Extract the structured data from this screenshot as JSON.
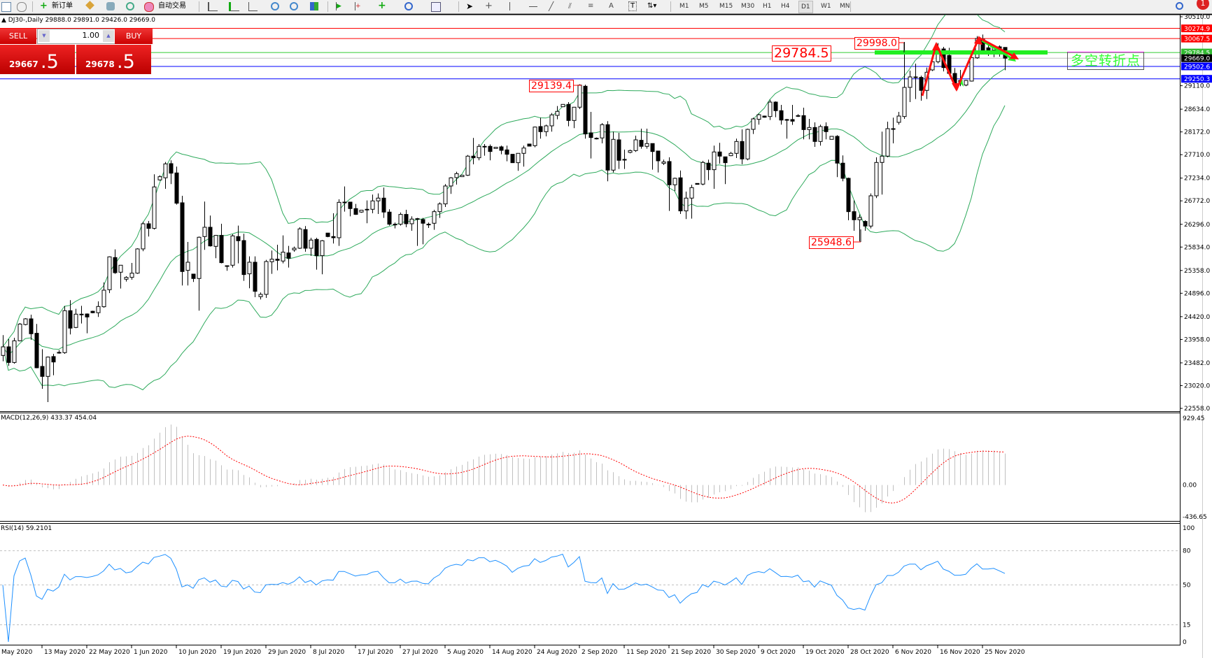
{
  "toolbar": {
    "new_order": "新订单",
    "auto_trading": "自动交易",
    "timeframes": [
      "M1",
      "M5",
      "M15",
      "M30",
      "H1",
      "H4",
      "D1",
      "W1",
      "MN"
    ],
    "active_timeframe": "D1",
    "notification_count": "1",
    "drawing_tools": [
      "A",
      "T"
    ]
  },
  "info_line": "DJ30-,Daily  29888.0 29891.0 29426.0 29669.0",
  "trade_panel": {
    "sell_label": "SELL",
    "buy_label": "BUY",
    "lot": "1.00",
    "sell_price_main": "29667",
    "sell_price_frac": ".5",
    "buy_price_main": "29678",
    "buy_price_frac": ".5",
    "color": "#cc0000"
  },
  "annotations": {
    "label_29784": "29784.5",
    "label_29998": "29998.0",
    "label_29139": "29139.4",
    "label_25948": "25948.6",
    "text_box": "多空转折点"
  },
  "indicator_titles": {
    "macd": "MACD(12,26,9) 433.37 454.04",
    "rsi": "RSI(14) 59.2101"
  },
  "chart_data": {
    "type": "candlestick",
    "symbol": "DJ30-",
    "timeframe": "Daily",
    "ylim": [
      22558.0,
      30510.0
    ],
    "y_ticks": [
      "30510.0",
      "29110.0",
      "28634.0",
      "28172.0",
      "27710.0",
      "27234.0",
      "26772.0",
      "26296.0",
      "25834.0",
      "25358.0",
      "24896.0",
      "24420.0",
      "23958.0",
      "23482.0",
      "23020.0",
      "22558.0"
    ],
    "x_labels_first": "May 2020",
    "x_labels": [
      "13 May 2020",
      "22 May 2020",
      "1 Jun 2020",
      "10 Jun 2020",
      "19 Jun 2020",
      "29 Jun 2020",
      "8 Jul 2020",
      "17 Jul 2020",
      "27 Jul 2020",
      "5 Aug 2020",
      "14 Aug 2020",
      "24 Aug 2020",
      "2 Sep 2020",
      "11 Sep 2020",
      "21 Sep 2020",
      "30 Sep 2020",
      "9 Oct 2020",
      "19 Oct 2020",
      "28 Oct 2020",
      "6 Nov 2020",
      "16 Nov 2020",
      "25 Nov 2020"
    ],
    "bollinger": {
      "period": 20,
      "deviation": 2,
      "color": "#2eaa5c"
    },
    "levels": [
      {
        "price": 30274.9,
        "label": "30274.9",
        "color": "#ff0000"
      },
      {
        "price": 30067.5,
        "label": "30067.5",
        "color": "#ff0000"
      },
      {
        "price": 29784.5,
        "label": "29784.5",
        "color": "#33cc33"
      },
      {
        "price": 29669.0,
        "label": "29669.0",
        "color": "#000000"
      },
      {
        "price": 29502.6,
        "label": "29502.6",
        "color": "#0000ff"
      },
      {
        "price": 29250.3,
        "label": "29250.3",
        "color": "#0000ff"
      }
    ],
    "candles_ohlc": [
      [
        23633,
        24045,
        23515,
        23808
      ],
      [
        23808,
        23965,
        23420,
        23490
      ],
      [
        23490,
        23990,
        23465,
        23930
      ],
      [
        23930,
        24290,
        23920,
        24270
      ],
      [
        24260,
        24390,
        24245,
        24376
      ],
      [
        24376,
        24460,
        23950,
        24073
      ],
      [
        24083,
        24272,
        23372,
        23382
      ],
      [
        23410,
        23760,
        22956,
        23207
      ],
      [
        23207,
        23610,
        22686,
        23600
      ],
      [
        23610,
        23666,
        23230,
        23500
      ],
      [
        23695,
        23740,
        23670,
        23695
      ],
      [
        23690,
        24636,
        23666,
        24542
      ],
      [
        24542,
        24755,
        24060,
        24187
      ],
      [
        24201,
        24580,
        24187,
        24471
      ],
      [
        24471,
        24640,
        24281,
        24471
      ],
      [
        24475,
        24485,
        24083,
        24414
      ],
      [
        24530,
        24540,
        24490,
        24500
      ],
      [
        24500,
        24730,
        24414,
        24627
      ],
      [
        24622,
        25115,
        24603,
        24958
      ],
      [
        24968,
        25645,
        24900,
        25635
      ],
      [
        25621,
        25787,
        25290,
        25313
      ],
      [
        25323,
        25465,
        24991,
        25465
      ],
      [
        25181,
        25242,
        25133,
        25218
      ],
      [
        25218,
        25512,
        25171,
        25304
      ],
      [
        25304,
        25810,
        25290,
        25796
      ],
      [
        25796,
        26345,
        25749,
        26307
      ],
      [
        26307,
        26364,
        26047,
        26213
      ],
      [
        26213,
        27311,
        26189,
        27055
      ],
      [
        27197,
        27292,
        27183,
        27263
      ],
      [
        27240,
        27561,
        27017,
        27523
      ],
      [
        27528,
        27595,
        27112,
        27334
      ],
      [
        27339,
        27467,
        26695,
        26724
      ],
      [
        26733,
        26875,
        25053,
        25337
      ],
      [
        25361,
        25938,
        25053,
        25526
      ],
      [
        25285,
        25285,
        25124,
        25195
      ],
      [
        25195,
        26047,
        24542,
        26033
      ],
      [
        26047,
        26757,
        25777,
        26236
      ],
      [
        26236,
        26473,
        25843,
        25857
      ],
      [
        25848,
        26080,
        25607,
        26071
      ],
      [
        26071,
        26307,
        25502,
        25517
      ],
      [
        25455,
        25455,
        25351,
        25455
      ],
      [
        25465,
        26094,
        25417,
        26061
      ],
      [
        26047,
        26269,
        25502,
        25962
      ],
      [
        25966,
        26104,
        25148,
        25275
      ],
      [
        25290,
        25645,
        24996,
        25526
      ],
      [
        25526,
        25645,
        24816,
        24935
      ],
      [
        24826,
        24911,
        24769,
        24873
      ],
      [
        24873,
        25573,
        24802,
        25540
      ],
      [
        25535,
        25763,
        25290,
        25588
      ],
      [
        25588,
        25881,
        25360,
        25564
      ],
      [
        25550,
        26071,
        25503,
        25730
      ],
      [
        25715,
        25857,
        25417,
        25607
      ],
      [
        25777,
        25843,
        25739,
        25810
      ],
      [
        25810,
        26236,
        25796,
        26203
      ],
      [
        26189,
        26260,
        25739,
        25810
      ],
      [
        25810,
        26023,
        25654,
        25976
      ],
      [
        25990,
        26023,
        25375,
        25659
      ],
      [
        25659,
        25976,
        25280,
        25962
      ],
      [
        26118,
        26118,
        26033,
        26047
      ],
      [
        26047,
        26520,
        25905,
        26023
      ],
      [
        26023,
        26804,
        25857,
        26742
      ],
      [
        26747,
        27065,
        26553,
        26747
      ],
      [
        26747,
        26747,
        26458,
        26615
      ],
      [
        26615,
        26709,
        26487,
        26497
      ],
      [
        26544,
        26582,
        26530,
        26582
      ],
      [
        26601,
        26780,
        26317,
        26601
      ],
      [
        26601,
        26899,
        26520,
        26771
      ],
      [
        26771,
        26922,
        26506,
        26828
      ],
      [
        26828,
        27041,
        26426,
        26544
      ],
      [
        26544,
        26601,
        26269,
        26298
      ],
      [
        26298,
        26331,
        26212,
        26298
      ],
      [
        26298,
        26535,
        26269,
        26497
      ],
      [
        26497,
        26591,
        26236,
        26307
      ],
      [
        26307,
        26458,
        26165,
        26402
      ],
      [
        26411,
        26426,
        25857,
        26411
      ],
      [
        26393,
        26426,
        25890,
        26317
      ],
      [
        26298,
        26331,
        26222,
        26298
      ],
      [
        26317,
        26591,
        26184,
        26553
      ],
      [
        26553,
        26742,
        26426,
        26710
      ],
      [
        26710,
        27112,
        26648,
        27074
      ],
      [
        27074,
        27254,
        26913,
        27240
      ],
      [
        27244,
        27363,
        27102,
        27325
      ],
      [
        27263,
        27292,
        27263,
        27292
      ],
      [
        27292,
        27704,
        27278,
        27680
      ],
      [
        27680,
        28049,
        27514,
        27647
      ],
      [
        27647,
        27926,
        27595,
        27879
      ],
      [
        27879,
        27926,
        27689,
        27879
      ],
      [
        27879,
        27917,
        27595,
        27774
      ],
      [
        27836,
        27860,
        27836,
        27860
      ],
      [
        27869,
        27893,
        27718,
        27798
      ],
      [
        27807,
        27893,
        27576,
        27718
      ],
      [
        27718,
        27718,
        27547,
        27547
      ],
      [
        27547,
        27737,
        27382,
        27737
      ],
      [
        27737,
        27893,
        27467,
        27845
      ],
      [
        27926,
        27926,
        27883,
        27883
      ],
      [
        27893,
        28281,
        27860,
        28271
      ],
      [
        28281,
        28461,
        28035,
        28177
      ],
      [
        28177,
        28319,
        28082,
        28295
      ],
      [
        28295,
        28556,
        28177,
        28518
      ],
      [
        28508,
        28697,
        28428,
        28589
      ],
      [
        28683,
        28731,
        28683,
        28731
      ],
      [
        28731,
        28778,
        28286,
        28404
      ],
      [
        28404,
        28674,
        28248,
        28674
      ],
      [
        28674,
        29139.4,
        28636,
        29123
      ],
      [
        29100,
        29130,
        28035,
        28130
      ],
      [
        28153,
        28579,
        27633,
        28058
      ],
      [
        28044,
        28058,
        28020,
        28044
      ],
      [
        28049,
        28352,
        27940,
        28319
      ],
      [
        28319,
        28390,
        27169,
        27396
      ],
      [
        27396,
        28177,
        27349,
        28021
      ],
      [
        28011,
        28153,
        27420,
        27595
      ],
      [
        27614,
        27812,
        27420,
        27614
      ],
      [
        27756,
        27812,
        27737,
        27793
      ],
      [
        27793,
        28096,
        27765,
        28011
      ],
      [
        28002,
        28238,
        27831,
        27879
      ],
      [
        27879,
        28238,
        27831,
        27936
      ],
      [
        27936,
        27936,
        27405,
        27774
      ],
      [
        27784,
        27784,
        27349,
        27585
      ],
      [
        27533,
        27609,
        27500,
        27562
      ],
      [
        27571,
        27656,
        26568,
        27098
      ],
      [
        27098,
        27244,
        26970,
        27230
      ],
      [
        27240,
        27387,
        26506,
        26568
      ],
      [
        26568,
        26960,
        26402,
        26828
      ],
      [
        26828,
        27098,
        26411,
        27041
      ],
      [
        27126,
        27126,
        27107,
        27107
      ],
      [
        27112,
        27585,
        27088,
        27552
      ],
      [
        27538,
        27609,
        27192,
        27405
      ],
      [
        27405,
        27893,
        27017,
        27765
      ],
      [
        27765,
        27950,
        27528,
        27680
      ],
      [
        27666,
        27666,
        27112,
        27547
      ],
      [
        27689,
        27765,
        27680,
        27737
      ],
      [
        27737,
        28035,
        27642,
        27978
      ],
      [
        27978,
        28224,
        27514,
        27623
      ],
      [
        27623,
        28238,
        27595,
        28224
      ],
      [
        28224,
        28461,
        28130,
        28437
      ],
      [
        28428,
        28541,
        28319,
        28522
      ],
      [
        28494,
        28503,
        28461,
        28470
      ],
      [
        28484,
        28825,
        28413,
        28778
      ],
      [
        28778,
        28792,
        28470,
        28603
      ],
      [
        28603,
        28721,
        28319,
        28413
      ],
      [
        28423,
        28437,
        28035,
        28423
      ],
      [
        28423,
        28721,
        28314,
        28390
      ],
      [
        28503,
        28532,
        28475,
        28503
      ],
      [
        28503,
        28664,
        28021,
        28219
      ],
      [
        28219,
        28437,
        28021,
        28262
      ],
      [
        28262,
        28366,
        27869,
        27978
      ],
      [
        27978,
        28319,
        27893,
        28281
      ],
      [
        28281,
        28366,
        28021,
        28177
      ],
      [
        28021,
        28082,
        28021,
        28082
      ],
      [
        28082,
        28106,
        27254,
        27538
      ],
      [
        27538,
        27694,
        27169,
        27230
      ],
      [
        27230,
        27244,
        26378,
        26553
      ],
      [
        26553,
        26780,
        26165,
        26388
      ],
      [
        26388,
        26496,
        25948.6,
        26435
      ],
      [
        26355,
        26378,
        26165,
        26260
      ],
      [
        26260,
        26922,
        26212,
        26875
      ],
      [
        26875,
        27656,
        26828,
        27552
      ],
      [
        27552,
        28177,
        26899,
        27680
      ],
      [
        27680,
        28380,
        27656,
        28238
      ],
      [
        28238,
        28461,
        27940,
        28238
      ],
      [
        28366,
        28579,
        28319,
        28494
      ],
      [
        28484,
        29998,
        28437,
        29076
      ],
      [
        29076,
        29417,
        28778,
        29289
      ],
      [
        29289,
        29559,
        28839,
        29289
      ],
      [
        29280,
        29313,
        28806,
        29015
      ],
      [
        29015,
        29478,
        28839,
        29384
      ],
      [
        29431,
        29706,
        29407,
        29597
      ],
      [
        29597,
        29975,
        29564,
        29857
      ],
      [
        29857,
        29900,
        29400,
        29478
      ],
      [
        29725,
        29880,
        29336,
        29360
      ],
      [
        29360,
        29469,
        29123,
        29156
      ],
      [
        29218,
        29431,
        29100,
        29156
      ],
      [
        29123,
        29230,
        29100,
        29218
      ],
      [
        29204,
        29715,
        29194,
        29682
      ],
      [
        29677,
        30117,
        29658,
        30070
      ],
      [
        30055,
        30150,
        29810,
        29833
      ],
      [
        29880,
        29952,
        29715,
        29833
      ],
      [
        29833,
        29880,
        29690,
        29880
      ],
      [
        29900,
        29930,
        29700,
        29780
      ],
      [
        29888,
        29891,
        29426,
        29669
      ]
    ],
    "macd": {
      "fast": 12,
      "slow": 26,
      "signal": 9,
      "ylim": [
        -436.65,
        929.45
      ],
      "ticks": [
        "929.45",
        "0.00",
        "-436.65"
      ],
      "histogram_color": "#c0c0c0",
      "signal_color": "#ff0000"
    },
    "rsi": {
      "period": 14,
      "ylim": [
        0,
        100
      ],
      "ticks": [
        "100",
        "80",
        "50",
        "15",
        "0"
      ],
      "levels": [
        80,
        50,
        15
      ],
      "color": "#1e90ff"
    }
  }
}
